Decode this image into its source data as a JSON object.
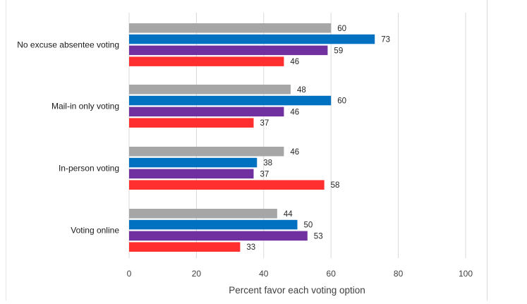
{
  "chart_data": {
    "type": "bar",
    "orientation": "horizontal",
    "categories": [
      "No excuse absentee voting",
      "Mail-in only voting",
      "In-person voting",
      "Voting online"
    ],
    "series": [
      {
        "values": [
          60,
          48,
          46,
          44
        ],
        "color": "#a6a6a6"
      },
      {
        "values": [
          73,
          60,
          38,
          50
        ],
        "color": "#0070c0"
      },
      {
        "values": [
          59,
          46,
          37,
          53
        ],
        "color": "#7030a0"
      },
      {
        "values": [
          46,
          37,
          58,
          33
        ],
        "color": "#ff2f2f"
      }
    ],
    "xlabel": "Percent favor each voting option",
    "xlim": [
      0,
      100
    ],
    "xticks": [
      0,
      20,
      40,
      60,
      80,
      100
    ],
    "grid": true,
    "data_labels": true,
    "legend": "none"
  }
}
